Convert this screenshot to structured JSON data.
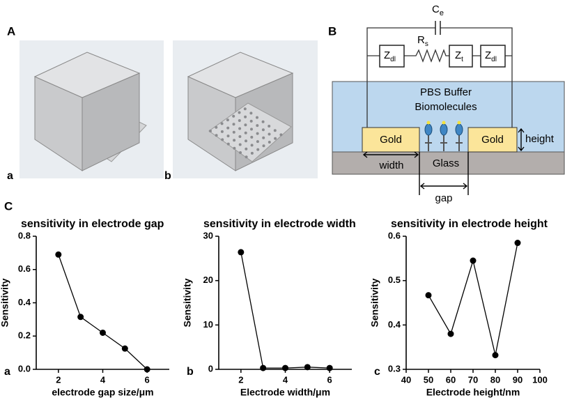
{
  "panel_labels": [
    "A",
    "B",
    "C"
  ],
  "image_labels": [
    "a",
    "b"
  ],
  "diagram": {
    "capacitor": {
      "main": "C",
      "sub": "e"
    },
    "elements": [
      {
        "main": "Z",
        "sub": "dl"
      },
      {
        "main": "R",
        "sub": "s"
      },
      {
        "main": "Z",
        "sub": "t"
      },
      {
        "main": "Z",
        "sub": "dl"
      }
    ],
    "buffer": "PBS Buffer",
    "molecules": "Biomolecules",
    "electrodes": [
      "Gold",
      "Gold"
    ],
    "substrate": "Glass",
    "dimensions": {
      "width": "width",
      "height": "height",
      "gap": "gap"
    }
  },
  "chart_data": [
    {
      "type": "line",
      "panel_label": "a",
      "title": "sensitivity in electrode gap",
      "x_label": "electrode gap size/μm",
      "y_label": "Sensitivity",
      "x": [
        2,
        3,
        4,
        5,
        6
      ],
      "series": [
        {
          "name": "sensitivity",
          "color": "#000000",
          "values": [
            0.69,
            0.315,
            0.22,
            0.125,
            0.0
          ]
        }
      ],
      "xlim": [
        1,
        7
      ],
      "xticks": [
        2,
        4,
        6
      ],
      "ylim": [
        0,
        0.8
      ],
      "yticks": [
        {
          "value": 0,
          "label": "0.0"
        },
        0.2,
        0.4,
        0.6,
        0.8
      ]
    },
    {
      "type": "line",
      "panel_label": "b",
      "title": "sensitivity in electrode width",
      "x_label": "Electrode width/μm",
      "y_label": "Sensitivity",
      "x": [
        2,
        3,
        4,
        5,
        6
      ],
      "series": [
        {
          "name": "sensitivity",
          "color": "#000000",
          "values": [
            26.4,
            0.3,
            0.3,
            0.5,
            0.3
          ]
        }
      ],
      "xlim": [
        1,
        7
      ],
      "xticks": [
        2,
        4,
        6
      ],
      "ylim": [
        0,
        30
      ],
      "yticks": [
        0,
        10,
        20,
        30
      ]
    },
    {
      "type": "line",
      "panel_label": "c",
      "title": "sensitivity in electrode height",
      "x_label": "Electrode height/nm",
      "y_label": "Sensitivity",
      "x": [
        50,
        60,
        70,
        80,
        90
      ],
      "series": [
        {
          "name": "sensitivity",
          "color": "#000000",
          "values": [
            0.467,
            0.38,
            0.545,
            0.332,
            0.585
          ]
        }
      ],
      "xlim": [
        40,
        100
      ],
      "xticks": [
        40,
        50,
        60,
        70,
        80,
        90,
        100
      ],
      "ylim": [
        0.3,
        0.6
      ],
      "yticks": [
        0.3,
        0.4,
        0.5,
        0.6
      ]
    }
  ]
}
